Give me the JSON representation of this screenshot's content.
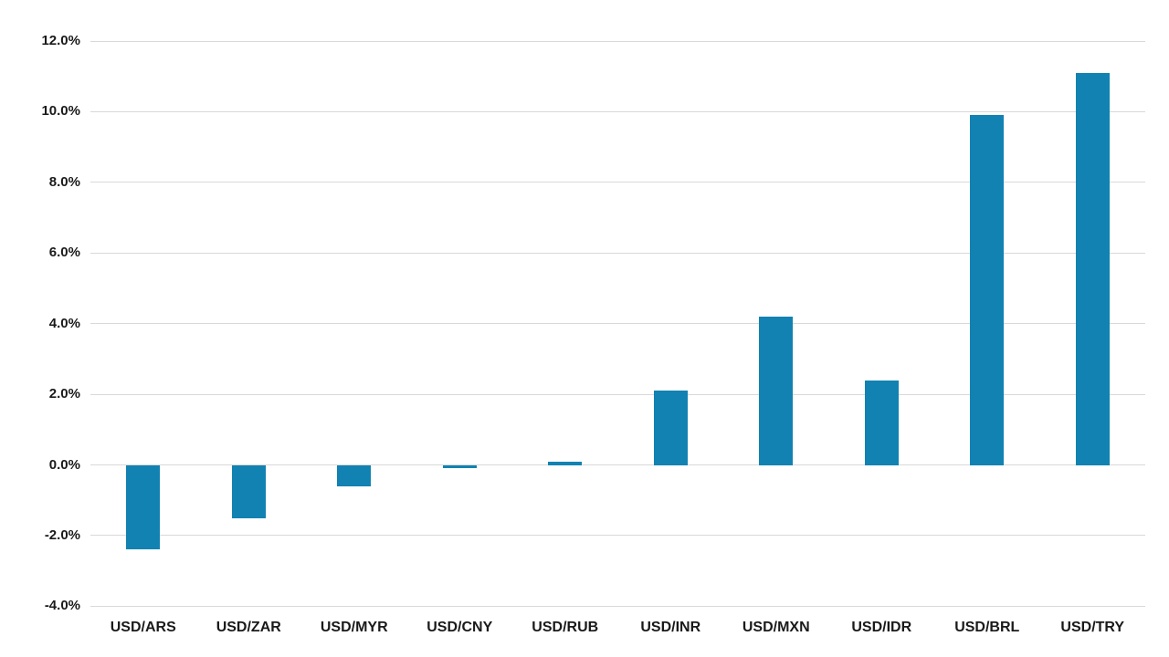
{
  "chart_data": {
    "type": "bar",
    "title": "",
    "xlabel": "",
    "ylabel": "",
    "categories": [
      "USD/ARS",
      "USD/ZAR",
      "USD/MYR",
      "USD/CNY",
      "USD/RUB",
      "USD/INR",
      "USD/MXN",
      "USD/IDR",
      "USD/BRL",
      "USD/TRY"
    ],
    "values": [
      -2.4,
      -1.5,
      -0.6,
      -0.1,
      0.1,
      2.1,
      4.2,
      2.4,
      9.9,
      11.1
    ],
    "ylim": [
      -4,
      12
    ],
    "ytick_step": 2,
    "ytick_labels": [
      "-4.0%",
      "-2.0%",
      "0.0%",
      "2.0%",
      "4.0%",
      "6.0%",
      "8.0%",
      "10.0%",
      "12.0%"
    ],
    "grid": true,
    "legend_position": "none",
    "colors": {
      "bar": "#1182B2",
      "gridline": "#D9D9D9",
      "label": "#1A1A1A",
      "background": "#FFFFFF"
    }
  }
}
